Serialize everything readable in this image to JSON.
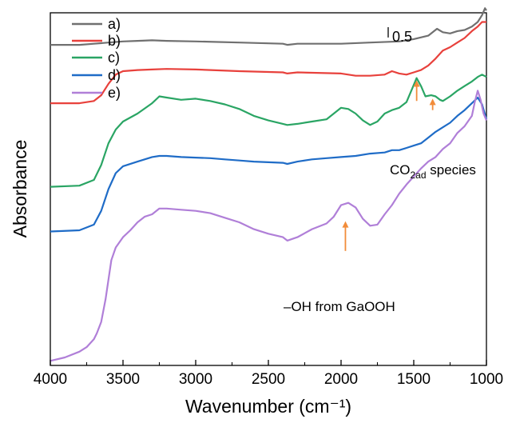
{
  "chart_data": {
    "type": "line",
    "xlabel": "Wavenumber (cm⁻¹)",
    "ylabel": "Absorbance",
    "xlim": [
      4000,
      1000
    ],
    "x_reversed": true,
    "y_tick_labels": false,
    "grid": false,
    "legend_placement": "top-left",
    "x_ticks": [
      4000,
      3500,
      3000,
      2500,
      2000,
      1500,
      1000
    ],
    "x_tick_labels": [
      "4000",
      "3500",
      "3000",
      "2500",
      "2000",
      "1500",
      "1000"
    ],
    "ylim": [
      -0.2,
      2.88
    ],
    "scale_bar": {
      "label": "0.5",
      "value": 0.5
    },
    "series": [
      {
        "name": "a)",
        "color": "#707070",
        "x": [
          4000,
          3800,
          3700,
          3600,
          3500,
          3400,
          3300,
          3200,
          3000,
          2700,
          2400,
          2370,
          2300,
          2000,
          1800,
          1600,
          1500,
          1400,
          1340,
          1300,
          1250,
          1200,
          1150,
          1100,
          1060,
          1030,
          1010,
          1000
        ],
        "y": [
          2.6,
          2.6,
          2.61,
          2.62,
          2.63,
          2.635,
          2.64,
          2.635,
          2.63,
          2.62,
          2.61,
          2.6,
          2.61,
          2.61,
          2.62,
          2.63,
          2.65,
          2.68,
          2.74,
          2.71,
          2.7,
          2.72,
          2.73,
          2.76,
          2.8,
          2.86,
          2.92,
          2.9
        ]
      },
      {
        "name": "b)",
        "color": "#e8413c",
        "x": [
          4000,
          3800,
          3700,
          3650,
          3600,
          3550,
          3500,
          3400,
          3300,
          3200,
          3000,
          2700,
          2400,
          2370,
          2300,
          2000,
          1900,
          1800,
          1700,
          1650,
          1600,
          1550,
          1500,
          1450,
          1400,
          1350,
          1300,
          1250,
          1200,
          1150,
          1100,
          1060,
          1030,
          1000
        ],
        "y": [
          2.09,
          2.09,
          2.11,
          2.16,
          2.26,
          2.34,
          2.37,
          2.38,
          2.385,
          2.39,
          2.385,
          2.37,
          2.36,
          2.35,
          2.36,
          2.35,
          2.33,
          2.33,
          2.34,
          2.37,
          2.35,
          2.34,
          2.36,
          2.38,
          2.42,
          2.48,
          2.55,
          2.58,
          2.62,
          2.66,
          2.72,
          2.76,
          2.8,
          2.8
        ]
      },
      {
        "name": "c)",
        "color": "#2aa564",
        "x": [
          4000,
          3800,
          3700,
          3650,
          3600,
          3550,
          3500,
          3400,
          3300,
          3250,
          3200,
          3100,
          3000,
          2900,
          2800,
          2700,
          2600,
          2500,
          2400,
          2370,
          2300,
          2200,
          2100,
          2000,
          1950,
          1900,
          1850,
          1800,
          1750,
          1700,
          1650,
          1600,
          1550,
          1500,
          1480,
          1450,
          1420,
          1380,
          1350,
          1320,
          1300,
          1250,
          1200,
          1150,
          1100,
          1060,
          1030,
          1000
        ],
        "y": [
          1.36,
          1.37,
          1.42,
          1.55,
          1.74,
          1.86,
          1.93,
          2.0,
          2.09,
          2.15,
          2.14,
          2.12,
          2.13,
          2.11,
          2.08,
          2.04,
          1.98,
          1.94,
          1.91,
          1.9,
          1.91,
          1.93,
          1.95,
          2.05,
          2.04,
          2.0,
          1.94,
          1.9,
          1.93,
          2.0,
          2.03,
          2.05,
          2.1,
          2.25,
          2.31,
          2.24,
          2.15,
          2.16,
          2.15,
          2.12,
          2.11,
          2.15,
          2.2,
          2.24,
          2.28,
          2.32,
          2.34,
          2.32
        ]
      },
      {
        "name": "d)",
        "color": "#1f6cc7",
        "x": [
          4000,
          3800,
          3700,
          3650,
          3600,
          3550,
          3500,
          3400,
          3300,
          3250,
          3200,
          3100,
          3000,
          2900,
          2800,
          2700,
          2600,
          2500,
          2400,
          2370,
          2300,
          2200,
          2100,
          2000,
          1900,
          1800,
          1700,
          1650,
          1600,
          1550,
          1500,
          1450,
          1400,
          1350,
          1300,
          1250,
          1200,
          1150,
          1100,
          1060,
          1030,
          1000
        ],
        "y": [
          0.97,
          0.98,
          1.03,
          1.15,
          1.34,
          1.48,
          1.54,
          1.58,
          1.62,
          1.63,
          1.63,
          1.62,
          1.615,
          1.61,
          1.6,
          1.59,
          1.58,
          1.575,
          1.57,
          1.56,
          1.58,
          1.6,
          1.61,
          1.62,
          1.63,
          1.65,
          1.66,
          1.68,
          1.68,
          1.7,
          1.72,
          1.74,
          1.79,
          1.84,
          1.88,
          1.92,
          1.98,
          2.03,
          2.09,
          2.14,
          2.08,
          1.95
        ]
      },
      {
        "name": "e)",
        "color": "#b07fd8",
        "x": [
          4000,
          3900,
          3800,
          3750,
          3700,
          3680,
          3650,
          3620,
          3600,
          3580,
          3550,
          3500,
          3450,
          3400,
          3350,
          3300,
          3250,
          3200,
          3100,
          3000,
          2900,
          2800,
          2700,
          2600,
          2500,
          2400,
          2370,
          2300,
          2200,
          2100,
          2050,
          2000,
          1950,
          1900,
          1850,
          1800,
          1750,
          1700,
          1650,
          1600,
          1550,
          1500,
          1450,
          1400,
          1350,
          1300,
          1250,
          1200,
          1150,
          1100,
          1080,
          1060,
          1040,
          1020,
          1000
        ],
        "y": [
          -0.16,
          -0.13,
          -0.08,
          -0.04,
          0.03,
          0.08,
          0.18,
          0.38,
          0.55,
          0.72,
          0.83,
          0.92,
          0.98,
          1.05,
          1.1,
          1.12,
          1.17,
          1.17,
          1.16,
          1.15,
          1.13,
          1.09,
          1.05,
          0.99,
          0.95,
          0.92,
          0.89,
          0.92,
          0.99,
          1.04,
          1.1,
          1.2,
          1.22,
          1.18,
          1.08,
          1.02,
          1.03,
          1.12,
          1.2,
          1.3,
          1.38,
          1.45,
          1.52,
          1.58,
          1.62,
          1.69,
          1.74,
          1.83,
          1.89,
          1.98,
          2.1,
          2.2,
          2.12,
          2.0,
          1.94
        ]
      }
    ],
    "annotations": [
      {
        "text": "CO",
        "sub": "2ad",
        "tail": " species",
        "arrows": [
          [
            1480,
            2.11,
            2.29
          ],
          [
            1370,
            2.03,
            2.13
          ]
        ]
      },
      {
        "text": "–OH from GaOOH",
        "arrows": [
          [
            1970,
            0.8,
            1.06
          ]
        ]
      }
    ],
    "arrow_color": "#f28c3a"
  }
}
